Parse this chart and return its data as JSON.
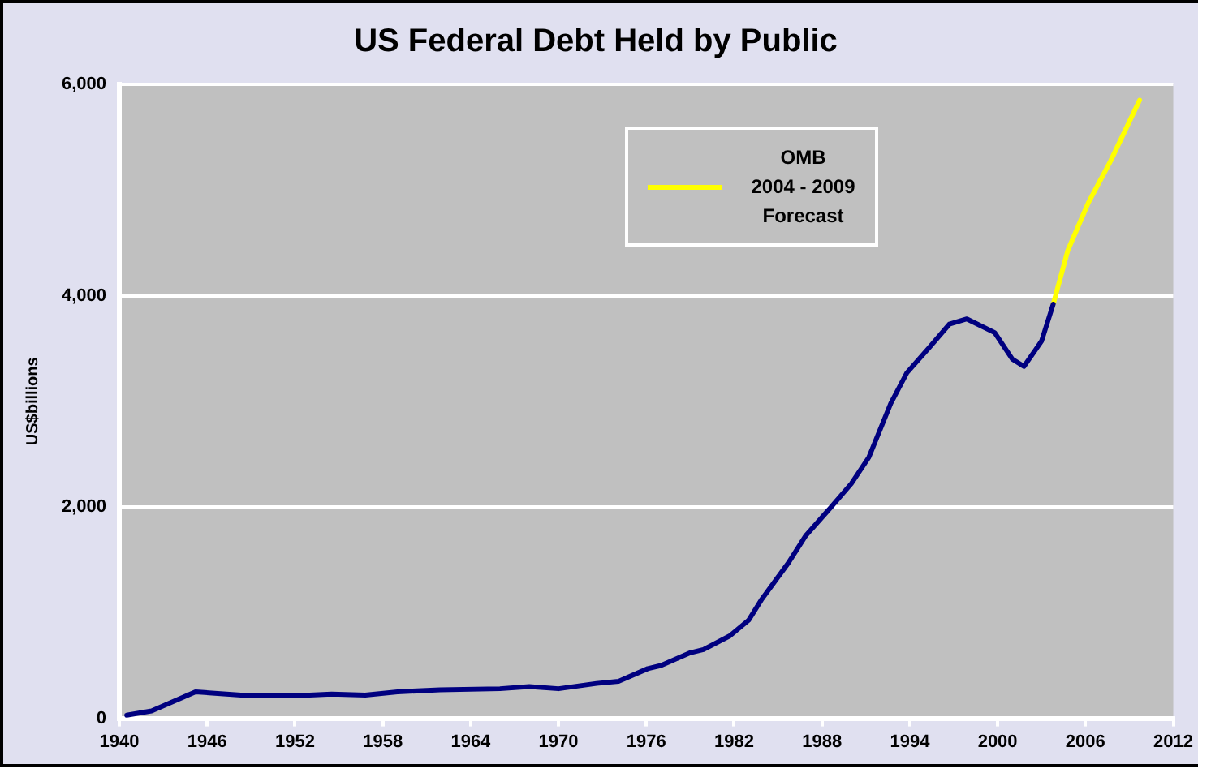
{
  "chart_data": {
    "type": "line",
    "title": "US Federal Debt Held by Public",
    "ylabel": "US$billions",
    "xlim": [
      1940,
      2012
    ],
    "xticks": [
      1940,
      1946,
      1952,
      1958,
      1964,
      1970,
      1976,
      1982,
      1988,
      1994,
      2000,
      2006,
      2012
    ],
    "ylim": [
      0,
      6000
    ],
    "yticks": [
      {
        "value": 0,
        "label": "0"
      },
      {
        "value": 2000,
        "label": "2,000"
      },
      {
        "value": 4000,
        "label": "4,000"
      },
      {
        "value": 6000,
        "label": "6,000"
      }
    ],
    "grid": "y",
    "legend": "top right",
    "marker": "none",
    "line_style": "solid",
    "series": [
      {
        "color": "#000080",
        "x": [
          1940.5,
          1942.2,
          1945.2,
          1948.3,
          1953,
          1954.5,
          1956.8,
          1959,
          1961.9,
          1966,
          1968,
          1970,
          1972.6,
          1974.1,
          1976.1,
          1977,
          1979,
          1979.9,
          1981.7,
          1983,
          1983.9,
          1985.7,
          1986.9,
          1988.5,
          1990,
          1991.2,
          1992.7,
          1993.8,
          1995.4,
          1996.7,
          1997.9,
          1999.8,
          2001,
          2001.8,
          2003,
          2003.8
        ],
        "values": [
          30,
          70,
          250,
          220,
          220,
          230,
          220,
          250,
          270,
          280,
          300,
          280,
          330,
          350,
          470,
          500,
          620,
          650,
          780,
          930,
          1130,
          1470,
          1730,
          1980,
          2220,
          2470,
          2980,
          3270,
          3520,
          3730,
          3780,
          3650,
          3400,
          3330,
          3570,
          3920
        ]
      },
      {
        "name": "OMB\n2004 - 2009\nForecast",
        "color": "#ffff00",
        "x": [
          2003.8,
          2004.8,
          2006.2,
          2007.7,
          2009.7
        ],
        "values": [
          3920,
          4430,
          4880,
          5270,
          5850
        ]
      }
    ]
  }
}
